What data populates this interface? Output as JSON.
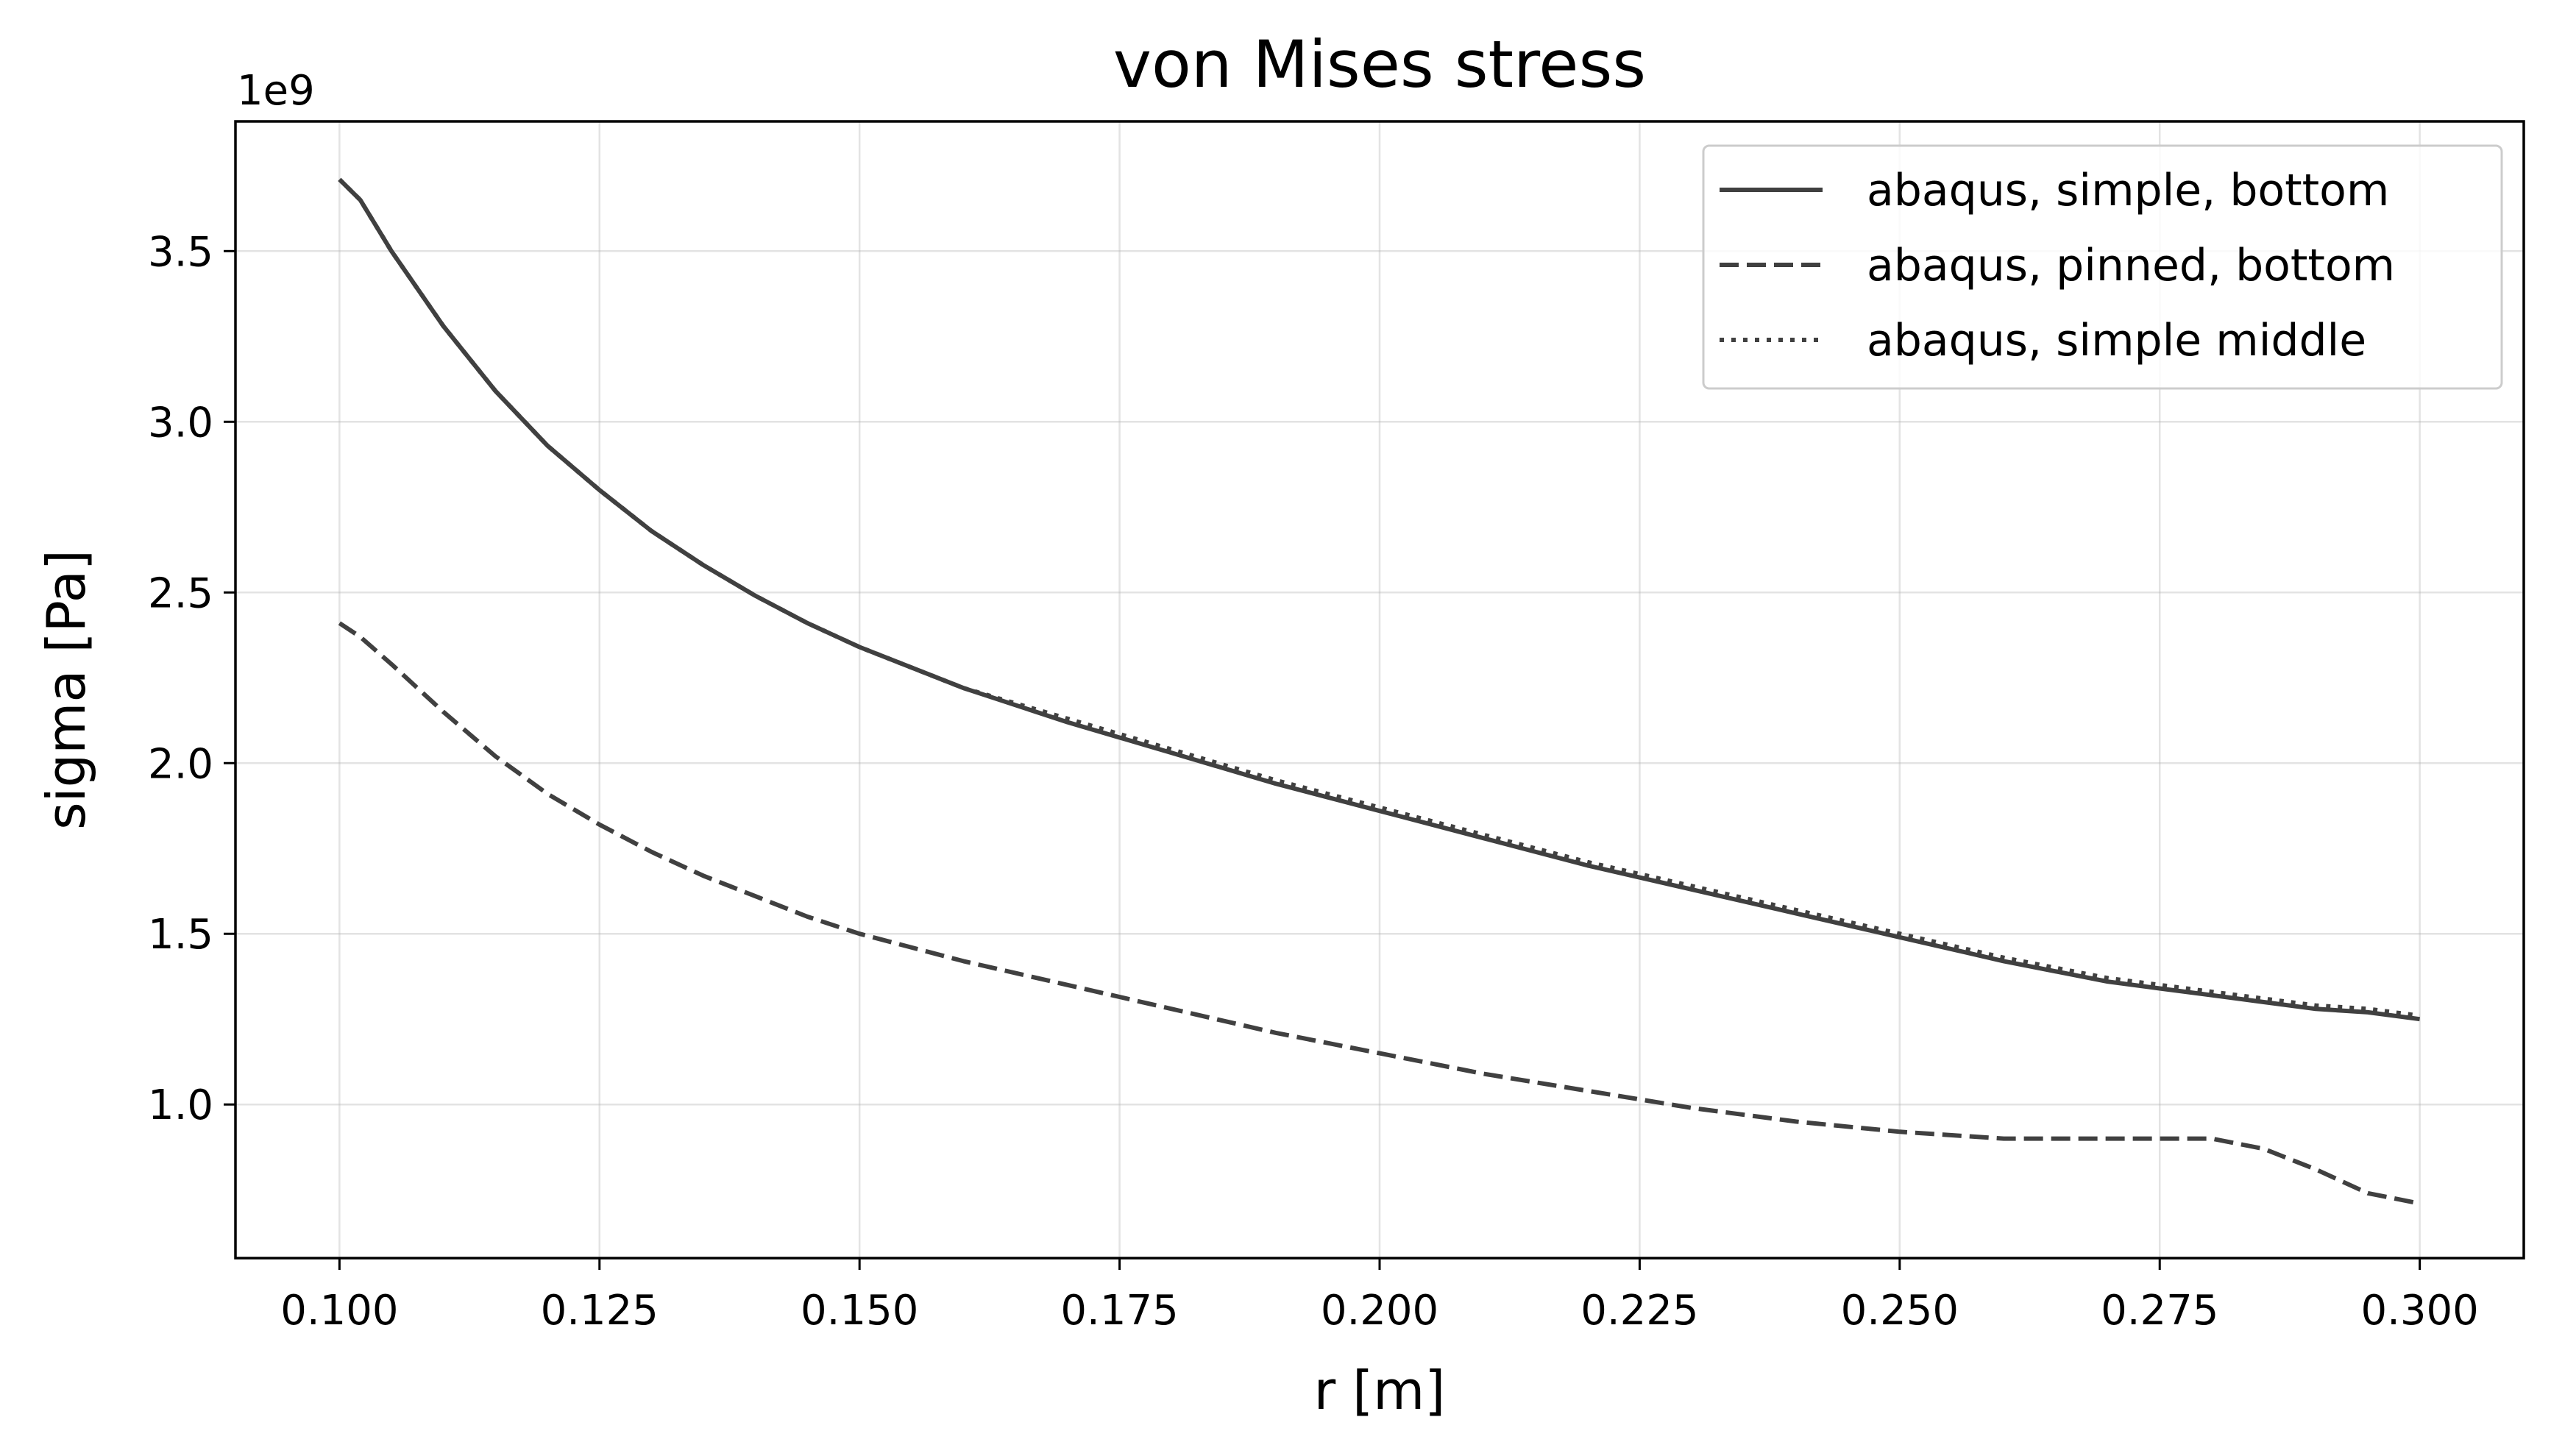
{
  "chart_data": {
    "type": "line",
    "title": "von Mises stress",
    "xlabel": "r [m]",
    "ylabel": "sigma [Pa]",
    "y_offset_label": "1e9",
    "xlim": [
      0.09,
      0.31
    ],
    "ylim": [
      0.55,
      3.88
    ],
    "xticks": [
      0.1,
      0.125,
      0.15,
      0.175,
      0.2,
      0.225,
      0.25,
      0.275,
      0.3
    ],
    "xtick_labels": [
      "0.100",
      "0.125",
      "0.150",
      "0.175",
      "0.200",
      "0.225",
      "0.250",
      "0.275",
      "0.300"
    ],
    "yticks": [
      1.0,
      1.5,
      2.0,
      2.5,
      3.0,
      3.5
    ],
    "ytick_labels": [
      "1.0",
      "1.5",
      "2.0",
      "2.5",
      "3.0",
      "3.5"
    ],
    "grid": true,
    "legend_position": "top-right",
    "x": [
      0.1,
      0.102,
      0.105,
      0.11,
      0.115,
      0.12,
      0.125,
      0.13,
      0.135,
      0.14,
      0.145,
      0.15,
      0.16,
      0.17,
      0.18,
      0.19,
      0.2,
      0.21,
      0.22,
      0.23,
      0.24,
      0.25,
      0.26,
      0.27,
      0.275,
      0.28,
      0.285,
      0.29,
      0.295,
      0.3
    ],
    "series": [
      {
        "name": "abaqus, simple, bottom",
        "style": "solid",
        "color": "#404040",
        "values": [
          3.71,
          3.65,
          3.5,
          3.28,
          3.09,
          2.93,
          2.8,
          2.68,
          2.58,
          2.49,
          2.41,
          2.34,
          2.22,
          2.12,
          2.03,
          1.94,
          1.86,
          1.78,
          1.7,
          1.63,
          1.56,
          1.49,
          1.42,
          1.36,
          1.34,
          1.32,
          1.3,
          1.28,
          1.27,
          1.25
        ]
      },
      {
        "name": "abaqus, pinned, bottom",
        "style": "dashed",
        "color": "#404040",
        "values": [
          2.41,
          2.37,
          2.29,
          2.15,
          2.02,
          1.91,
          1.82,
          1.74,
          1.67,
          1.61,
          1.55,
          1.5,
          1.42,
          1.35,
          1.28,
          1.21,
          1.15,
          1.09,
          1.04,
          0.99,
          0.95,
          0.92,
          0.9,
          0.9,
          0.9,
          0.9,
          0.87,
          0.81,
          0.74,
          0.71
        ]
      },
      {
        "name": "abaqus, simple middle",
        "style": "dotted",
        "color": "#404040",
        "values": [
          3.71,
          3.65,
          3.5,
          3.28,
          3.09,
          2.93,
          2.8,
          2.68,
          2.58,
          2.49,
          2.41,
          2.34,
          2.22,
          2.13,
          2.04,
          1.95,
          1.87,
          1.79,
          1.71,
          1.64,
          1.57,
          1.5,
          1.43,
          1.37,
          1.35,
          1.33,
          1.31,
          1.29,
          1.28,
          1.26
        ]
      }
    ]
  }
}
